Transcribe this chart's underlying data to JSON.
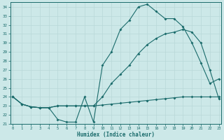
{
  "xlabel": "Humidex (Indice chaleur)",
  "xlim": [
    -0.3,
    23.3
  ],
  "ylim": [
    21,
    34.5
  ],
  "yticks": [
    21,
    22,
    23,
    24,
    25,
    26,
    27,
    28,
    29,
    30,
    31,
    32,
    33,
    34
  ],
  "xticks": [
    0,
    1,
    2,
    3,
    4,
    5,
    6,
    7,
    8,
    9,
    10,
    11,
    12,
    13,
    14,
    15,
    16,
    17,
    18,
    19,
    20,
    21,
    22,
    23
  ],
  "bg_color": "#cce8e8",
  "grid_color": "#b8d8d8",
  "line_color": "#1a6b6b",
  "curve1_x": [
    0,
    1,
    2,
    3,
    4,
    5,
    6,
    7,
    8,
    9,
    10,
    11,
    12,
    13,
    14,
    15,
    16,
    17,
    18,
    19,
    20,
    21,
    22,
    23
  ],
  "curve1_y": [
    24.0,
    23.2,
    22.9,
    22.8,
    22.8,
    21.5,
    21.2,
    21.2,
    24.0,
    21.2,
    27.5,
    29.0,
    31.5,
    32.5,
    34.0,
    34.3,
    33.5,
    32.7,
    32.7,
    31.8,
    30.0,
    27.8,
    25.5,
    26.0
  ],
  "curve2_x": [
    0,
    1,
    2,
    3,
    4,
    5,
    6,
    7,
    8,
    9,
    10,
    11,
    12,
    13,
    14,
    15,
    16,
    17,
    18,
    19,
    20,
    21,
    22,
    23
  ],
  "curve2_y": [
    24.0,
    23.2,
    22.9,
    22.8,
    22.8,
    23.0,
    23.0,
    23.0,
    23.0,
    23.0,
    24.0,
    25.5,
    26.5,
    27.5,
    28.8,
    29.8,
    30.5,
    31.0,
    31.2,
    31.5,
    31.2,
    30.0,
    27.0,
    23.8
  ],
  "curve3_x": [
    0,
    1,
    2,
    3,
    4,
    5,
    6,
    7,
    8,
    9,
    10,
    11,
    12,
    13,
    14,
    15,
    16,
    17,
    18,
    19,
    20,
    21,
    22,
    23
  ],
  "curve3_y": [
    24.0,
    23.2,
    22.9,
    22.8,
    22.8,
    23.0,
    23.0,
    23.0,
    23.0,
    23.0,
    23.1,
    23.2,
    23.3,
    23.4,
    23.5,
    23.6,
    23.7,
    23.8,
    23.9,
    24.0,
    24.0,
    24.0,
    24.0,
    24.0
  ],
  "figsize": [
    3.2,
    2.0
  ],
  "dpi": 100
}
